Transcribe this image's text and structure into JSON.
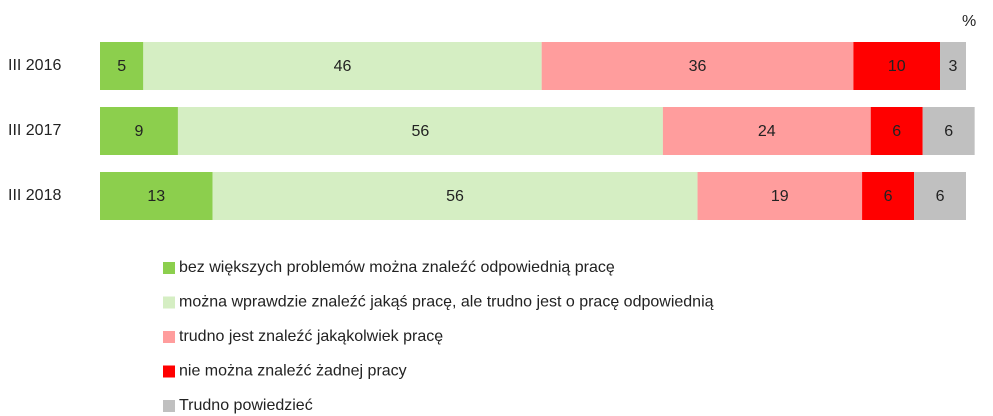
{
  "chart_data": {
    "type": "stacked-bar-horizontal",
    "unit": "%",
    "categories": [
      "III 2016",
      "III 2017",
      "III 2018"
    ],
    "xlim": [
      0,
      100
    ],
    "series": [
      {
        "name": "bez większych problemów można znaleźć odpowiednią pracę",
        "color": "#8ccf4d",
        "values": [
          5,
          9,
          13
        ]
      },
      {
        "name": "można wprawdzie znaleźć jakąś pracę, ale trudno jest o pracę odpowiednią",
        "color": "#d5eec3",
        "values": [
          46,
          56,
          56
        ]
      },
      {
        "name": "trudno jest znaleźć jakąkolwiek pracę",
        "color": "#ff9d9d",
        "values": [
          36,
          24,
          19
        ]
      },
      {
        "name": "nie można znaleźć żadnej pracy",
        "color": "#ff0000",
        "values": [
          10,
          6,
          6
        ]
      },
      {
        "name": "Trudno powiedzieć",
        "color": "#c0c0c0",
        "values": [
          3,
          6,
          6
        ]
      }
    ]
  }
}
